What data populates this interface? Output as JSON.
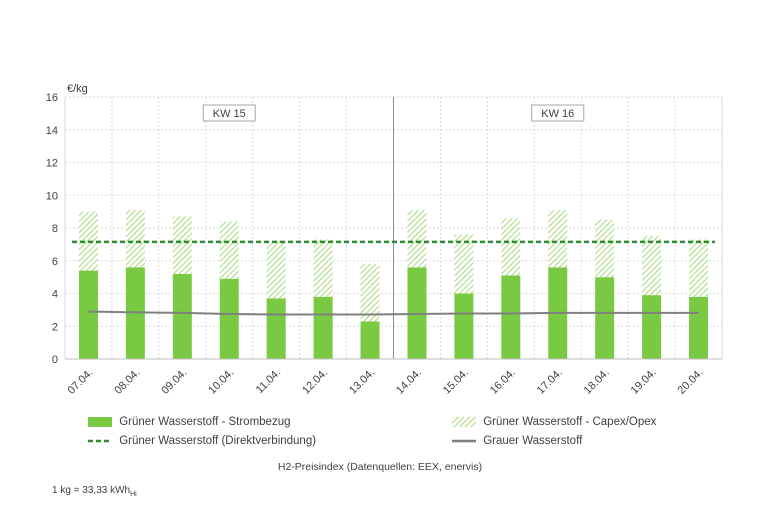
{
  "chart_data": {
    "type": "bar",
    "unit_label": "€/kg",
    "ylim": [
      0,
      16
    ],
    "yticks": [
      0,
      2,
      4,
      6,
      8,
      10,
      12,
      14,
      16
    ],
    "grid": true,
    "categories": [
      "07.04.",
      "08.04.",
      "09.04.",
      "10.04.",
      "11.04.",
      "12.04.",
      "13.04.",
      "14.04.",
      "15.04.",
      "16.04.",
      "17.04.",
      "18.04.",
      "19.04.",
      "20.04."
    ],
    "week_labels": [
      {
        "label": "KW 15",
        "from": 0,
        "to": 6
      },
      {
        "label": "KW 16",
        "from": 7,
        "to": 13
      }
    ],
    "series": [
      {
        "name": "Grüner Wasserstoff - Strombezug",
        "kind": "bar-stack",
        "values": [
          5.4,
          5.6,
          5.2,
          4.9,
          3.7,
          3.8,
          2.3,
          5.6,
          4.0,
          5.1,
          5.6,
          5.0,
          3.9,
          3.8
        ],
        "color": "#7ac943"
      },
      {
        "name": "Grüner Wasserstoff - Capex/Opex",
        "kind": "bar-stack-hatched",
        "values": [
          3.6,
          3.5,
          3.5,
          3.5,
          3.5,
          3.5,
          3.5,
          3.5,
          3.6,
          3.5,
          3.5,
          3.5,
          3.6,
          3.5
        ],
        "color": "#7ac943"
      },
      {
        "name": "Grüner Wasserstoff (Direktverbindung)",
        "kind": "dashed-line",
        "values": [
          7.15,
          7.15,
          7.15,
          7.15,
          7.15,
          7.15,
          7.15,
          7.15,
          7.15,
          7.15,
          7.15,
          7.15,
          7.15,
          7.15
        ],
        "color": "#2e8b2e"
      },
      {
        "name": "Grauer Wasserstoff",
        "kind": "line",
        "values": [
          2.9,
          2.85,
          2.82,
          2.75,
          2.72,
          2.72,
          2.72,
          2.75,
          2.78,
          2.78,
          2.82,
          2.82,
          2.82,
          2.82
        ],
        "color": "#7f7f7f"
      }
    ],
    "title": "H2-Preisindex (Datenquellen: EEX, enervis)",
    "footnote": "1 kg = 33,33 kWh",
    "footnote_sub": "Hi",
    "legend_position": "bottom"
  }
}
